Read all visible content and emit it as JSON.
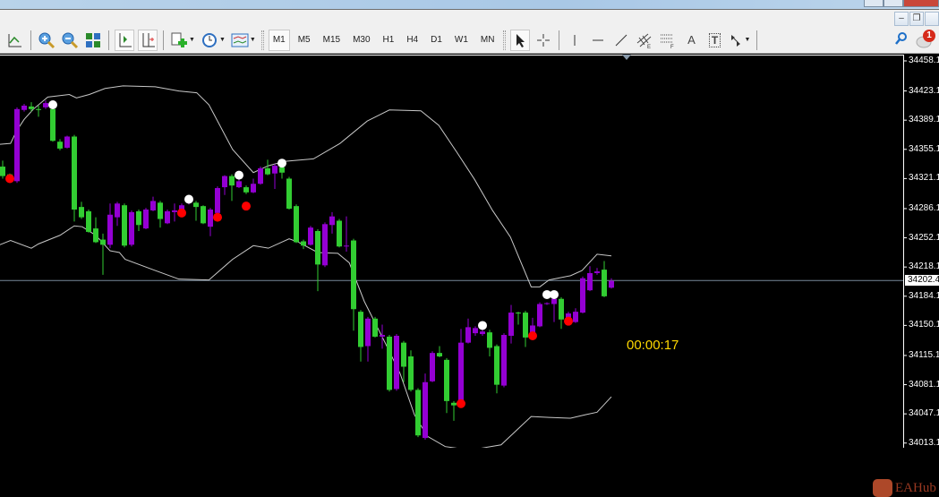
{
  "colors": {
    "bull": "#9400d3",
    "bear": "#32cd32",
    "band": "#c8c8c8",
    "bid_line": "#778899",
    "timer": "#ffd800",
    "sell_signal": "#ffffff",
    "buy_signal": "#ff0000"
  },
  "toolbar": {
    "icons": [
      "line-chart-icon",
      "zoom-in-icon",
      "zoom-out-icon",
      "tile-windows-icon",
      "chart-shift-icon",
      "auto-scroll-icon",
      "indicators-icon",
      "periodicity-icon",
      "templates-icon"
    ],
    "timeframes": [
      "M1",
      "M5",
      "M15",
      "M30",
      "H1",
      "H4",
      "D1",
      "W1",
      "MN"
    ],
    "active_timeframe": "M1",
    "drawing_tools": [
      "cursor-icon",
      "crosshair-icon",
      "vertical-line-icon",
      "horizontal-line-icon",
      "trendline-icon",
      "equidistant-channel-icon",
      "fibonacci-icon",
      "text-icon",
      "text-label-icon",
      "arrows-icon"
    ],
    "text_tool": "A",
    "label_tool": "T",
    "notification_count": "1"
  },
  "chart": {
    "timer": "00:00:17",
    "current_price": 34202.4,
    "current_price_label": "34202.40",
    "price_ticks": [
      {
        "v": 34458.1,
        "label": "34458.10"
      },
      {
        "v": 34423.1,
        "label": "34423.10"
      },
      {
        "v": 34389.1,
        "label": "34389.10"
      },
      {
        "v": 34355.1,
        "label": "34355.10"
      },
      {
        "v": 34321.1,
        "label": "34321.10"
      },
      {
        "v": 34286.1,
        "label": "34286.10"
      },
      {
        "v": 34252.1,
        "label": "34252.10"
      },
      {
        "v": 34218.1,
        "label": "34218.10"
      },
      {
        "v": 34184.1,
        "label": "34184.10"
      },
      {
        "v": 34150.1,
        "label": "34150.10"
      },
      {
        "v": 34115.1,
        "label": "34115.10"
      },
      {
        "v": 34081.1,
        "label": "34081.10"
      },
      {
        "v": 34047.1,
        "label": "34047.10"
      },
      {
        "v": 34013.1,
        "label": "34013.10"
      }
    ],
    "watermark": "EAHub"
  },
  "chart_data": {
    "type": "candlestick",
    "ohlc_format": [
      "open",
      "high",
      "low",
      "close"
    ],
    "candles": [
      [
        34335,
        34342,
        34321,
        34324
      ],
      [
        34326,
        34327,
        34321,
        34322
      ],
      [
        34318,
        34404,
        34316,
        34402
      ],
      [
        34401,
        34408,
        34399,
        34406
      ],
      [
        34405,
        34410,
        34399,
        34402
      ],
      [
        34402,
        34406,
        34393,
        34401
      ],
      [
        34404,
        34412,
        34402,
        34409
      ],
      [
        34402,
        34404,
        34364,
        34365
      ],
      [
        34364,
        34367,
        34354,
        34356
      ],
      [
        34357,
        34371,
        34356,
        34370
      ],
      [
        34370,
        34372,
        34271,
        34285
      ],
      [
        34288,
        34294,
        34274,
        34276
      ],
      [
        34283,
        34285,
        34258,
        34259
      ],
      [
        34263,
        34276,
        34246,
        34247
      ],
      [
        34250,
        34257,
        34209,
        34244
      ],
      [
        34244,
        34292,
        34240,
        34279
      ],
      [
        34276,
        34294,
        34266,
        34292
      ],
      [
        34290,
        34292,
        34241,
        34243
      ],
      [
        34244,
        34284,
        34242,
        34282
      ],
      [
        34283,
        34285,
        34260,
        34267
      ],
      [
        34263,
        34287,
        34262,
        34285
      ],
      [
        34284,
        34300,
        34283,
        34295
      ],
      [
        34293,
        34295,
        34264,
        34274
      ],
      [
        34269,
        34285,
        34268,
        34283
      ],
      [
        34282,
        34292,
        34271,
        34284
      ],
      [
        34285,
        34292,
        34284,
        34290
      ],
      [
        34293,
        34297,
        34291,
        34295
      ],
      [
        34293,
        34295,
        34272,
        34288
      ],
      [
        34289,
        34290,
        34268,
        34269
      ],
      [
        34265,
        34287,
        34254,
        34285
      ],
      [
        34281,
        34312,
        34280,
        34310
      ],
      [
        34311,
        34325,
        34302,
        34324
      ],
      [
        34324,
        34326,
        34295,
        34313
      ],
      [
        34311,
        34320,
        34310,
        34318
      ],
      [
        34311,
        34313,
        34303,
        34305
      ],
      [
        34305,
        34321,
        34304,
        34315
      ],
      [
        34315,
        34335,
        34314,
        34333
      ],
      [
        34333,
        34343,
        34325,
        34326
      ],
      [
        34327,
        34338,
        34309,
        34336
      ],
      [
        34334,
        34340,
        34321,
        34328
      ],
      [
        34321,
        34323,
        34285,
        34286
      ],
      [
        34289,
        34291,
        34246,
        34247
      ],
      [
        34248,
        34250,
        34239,
        34243
      ],
      [
        34244,
        34266,
        34243,
        34264
      ],
      [
        34260,
        34262,
        34190,
        34221
      ],
      [
        34220,
        34270,
        34218,
        34268
      ],
      [
        34267,
        34282,
        34257,
        34277
      ],
      [
        34272,
        34274,
        34241,
        34242
      ],
      [
        34242,
        34277,
        34236,
        34243
      ],
      [
        34249,
        34251,
        34144,
        34169
      ],
      [
        34166,
        34168,
        34108,
        34125
      ],
      [
        34126,
        34160,
        34108,
        34158
      ],
      [
        34158,
        34160,
        34136,
        34137
      ],
      [
        34137,
        34151,
        34123,
        34139
      ],
      [
        34137,
        34139,
        34073,
        34075
      ],
      [
        34076,
        34140,
        34074,
        34138
      ],
      [
        34130,
        34132,
        34084,
        34102
      ],
      [
        34114,
        34121,
        34073,
        34075
      ],
      [
        34075,
        34077,
        34020,
        34022
      ],
      [
        34019,
        34094,
        34017,
        34084
      ],
      [
        34085,
        34120,
        34084,
        34118
      ],
      [
        34118,
        34126,
        34113,
        34114
      ],
      [
        34110,
        34112,
        34048,
        34062
      ],
      [
        34060,
        34062,
        34039,
        34057
      ],
      [
        34058,
        34146,
        34056,
        34130
      ],
      [
        34130,
        34158,
        34129,
        34148
      ],
      [
        34141,
        34149,
        34138,
        34147
      ],
      [
        34140,
        34145,
        34138,
        34143
      ],
      [
        34142,
        34145,
        34114,
        34124
      ],
      [
        34126,
        34128,
        34071,
        34081
      ],
      [
        34080,
        34141,
        34078,
        34139
      ],
      [
        34138,
        34174,
        34129,
        34165
      ],
      [
        34165,
        34166,
        34151,
        34164
      ],
      [
        34165,
        34167,
        34125,
        34136
      ],
      [
        34140,
        34159,
        34139,
        34150
      ],
      [
        34149,
        34177,
        34148,
        34175
      ],
      [
        34175,
        34177,
        34174,
        34176
      ],
      [
        34175,
        34183,
        34154,
        34181
      ],
      [
        34181,
        34183,
        34146,
        34157
      ],
      [
        34158,
        34166,
        34152,
        34164
      ],
      [
        34154,
        34170,
        34153,
        34166
      ],
      [
        34165,
        34207,
        34164,
        34205
      ],
      [
        34191,
        34219,
        34190,
        34211
      ],
      [
        34211,
        34217,
        34209,
        34213
      ],
      [
        34215,
        34225,
        34183,
        34184
      ],
      [
        34194,
        34205,
        34193,
        34202
      ]
    ],
    "bollinger_upper": [
      [
        -0.4,
        34361
      ],
      [
        1.1,
        34362
      ],
      [
        1.9,
        34376
      ],
      [
        3,
        34390
      ],
      [
        4.3,
        34402
      ],
      [
        6.3,
        34416
      ],
      [
        9.3,
        34419
      ],
      [
        10.3,
        34415
      ],
      [
        12.1,
        34419
      ],
      [
        14.3,
        34426
      ],
      [
        16.8,
        34429
      ],
      [
        21.3,
        34428
      ],
      [
        24.6,
        34423
      ],
      [
        27.1,
        34421
      ],
      [
        28.8,
        34407
      ],
      [
        32.1,
        34355
      ],
      [
        35,
        34328
      ],
      [
        37.1,
        34336
      ],
      [
        39.3,
        34341
      ],
      [
        43.4,
        34344
      ],
      [
        47.1,
        34362
      ],
      [
        50.9,
        34388
      ],
      [
        54,
        34401
      ],
      [
        58.4,
        34400
      ],
      [
        60.9,
        34383
      ],
      [
        63.4,
        34352
      ],
      [
        65.9,
        34320
      ],
      [
        68.4,
        34284
      ],
      [
        70.9,
        34253
      ],
      [
        73.8,
        34195
      ],
      [
        75,
        34195
      ],
      [
        76.3,
        34203
      ],
      [
        79.3,
        34208
      ],
      [
        80.9,
        34214
      ],
      [
        83,
        34233
      ],
      [
        85,
        34231
      ]
    ],
    "bollinger_lower": [
      [
        -0.4,
        34244
      ],
      [
        1.1,
        34249
      ],
      [
        4,
        34240
      ],
      [
        5,
        34245
      ],
      [
        8,
        34255
      ],
      [
        10,
        34266
      ],
      [
        11.1,
        34265
      ],
      [
        13,
        34255
      ],
      [
        15,
        34237
      ],
      [
        16.3,
        34235
      ],
      [
        17.1,
        34227
      ],
      [
        21.3,
        34214
      ],
      [
        24.6,
        34204
      ],
      [
        28.8,
        34203
      ],
      [
        32.1,
        34227
      ],
      [
        35,
        34243
      ],
      [
        37.1,
        34240
      ],
      [
        40,
        34251
      ],
      [
        41.3,
        34247
      ],
      [
        44,
        34235
      ],
      [
        46.8,
        34234
      ],
      [
        48.4,
        34223
      ],
      [
        50.5,
        34178
      ],
      [
        53.4,
        34130
      ],
      [
        55.5,
        34094
      ],
      [
        57.5,
        34046
      ],
      [
        59.3,
        34021
      ],
      [
        61.8,
        34009
      ],
      [
        65.3,
        34005
      ],
      [
        69.6,
        34011
      ],
      [
        73.8,
        34044
      ],
      [
        76.3,
        34043
      ],
      [
        79.3,
        34042
      ],
      [
        81.3,
        34046
      ],
      [
        83,
        34049
      ],
      [
        85,
        34067
      ]
    ],
    "sell_signals": [
      [
        7,
        34407
      ],
      [
        26,
        34297
      ],
      [
        33,
        34325
      ],
      [
        39,
        34339
      ],
      [
        67,
        34150
      ],
      [
        76,
        34186
      ],
      [
        77,
        34186
      ]
    ],
    "buy_signals": [
      [
        1,
        34321
      ],
      [
        25,
        34281
      ],
      [
        30,
        34276
      ],
      [
        34,
        34289
      ],
      [
        64,
        34059
      ],
      [
        74,
        34138
      ],
      [
        79,
        34155
      ]
    ],
    "ylim": [
      34013.1,
      34458.1
    ]
  }
}
